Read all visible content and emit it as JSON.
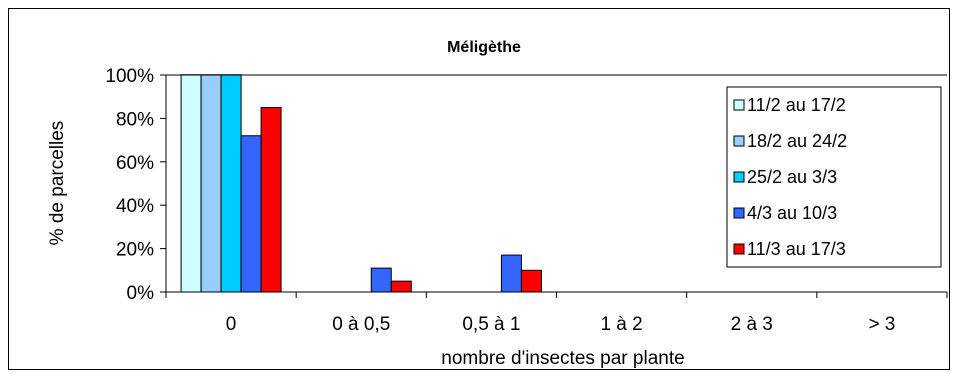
{
  "chart_data": {
    "type": "bar",
    "title": "Méligèthe",
    "xlabel": "nombre d'insectes par plante",
    "ylabel": "% de parcelles",
    "ylim": [
      0,
      100
    ],
    "yticks": [
      "0%",
      "20%",
      "40%",
      "60%",
      "80%",
      "100%"
    ],
    "grid": false,
    "legend_position": "right",
    "categories": [
      "0",
      "0 à 0,5",
      "0,5 à 1",
      "1 à 2",
      "2 à 3",
      "> 3"
    ],
    "series": [
      {
        "name": "11/2 au 17/2",
        "color": "#ccffff",
        "values": [
          100,
          0,
          0,
          0,
          0,
          0
        ]
      },
      {
        "name": "18/2 au 24/2",
        "color": "#99ccff",
        "values": [
          100,
          0,
          0,
          0,
          0,
          0
        ]
      },
      {
        "name": "25/2 au 3/3",
        "color": "#00ccff",
        "values": [
          100,
          0,
          0,
          0,
          0,
          0
        ]
      },
      {
        "name": "4/3 au 10/3",
        "color": "#3366ff",
        "values": [
          72,
          11,
          17,
          0,
          0,
          0
        ]
      },
      {
        "name": "11/3 au 17/3",
        "color": "#ff0000",
        "values": [
          85,
          5,
          10,
          0,
          0,
          0
        ]
      }
    ]
  }
}
